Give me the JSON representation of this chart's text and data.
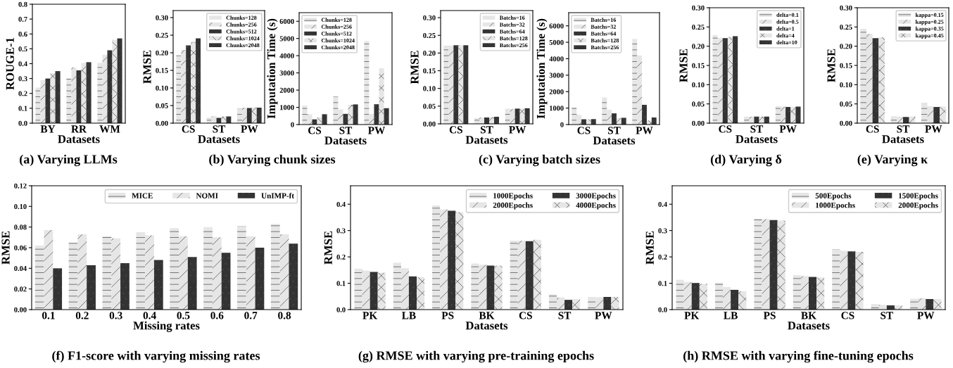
{
  "chart_data": [
    {
      "type": "bar",
      "categories": [
        "BY",
        "RR",
        "WM"
      ],
      "xlabel": "Datasets",
      "ylabel": "ROUGE-1",
      "ylim": [
        0,
        0.8
      ],
      "yticks": [
        {
          "value": 0,
          "label": "0.0"
        },
        {
          "value": 0.1,
          "label": "0.1"
        },
        {
          "value": 0.2,
          "label": "0.2"
        },
        {
          "value": 0.3,
          "label": "0.3"
        },
        {
          "value": 0.4,
          "label": "0.4"
        },
        {
          "value": 0.5,
          "label": "0.5"
        },
        {
          "value": 0.6,
          "label": "0.6"
        },
        {
          "value": 0.7,
          "label": "0.7"
        },
        {
          "value": 0.8,
          "label": "0.8"
        }
      ],
      "annotations": [
        "(a) Varying LLMs"
      ],
      "series": [
        {
          "color": "#e6e6e6",
          "values": [
            0.24,
            0.3,
            0.405
          ]
        },
        {
          "color": "#e6e6e6",
          "values": [
            0.29,
            0.375,
            0.46
          ]
        },
        {
          "color": "#333333",
          "values": [
            0.3,
            0.355,
            0.49
          ]
        },
        {
          "color": "#e6e6e6",
          "values": [
            0.335,
            0.405,
            0.56
          ]
        },
        {
          "color": "#333333",
          "values": [
            0.35,
            0.41,
            0.57
          ]
        }
      ]
    },
    {
      "type": "bar",
      "categories": [
        "CS",
        "ST",
        "PW"
      ],
      "xlabel": "Datasets",
      "ylabel": "RMSE",
      "ylim": [
        0,
        0.32
      ],
      "yticks": [
        {
          "value": 0,
          "label": "0.00"
        },
        {
          "value": 0.05,
          "label": "0.05"
        },
        {
          "value": 0.1,
          "label": "0.10"
        },
        {
          "value": 0.15,
          "label": "0.15"
        },
        {
          "value": 0.2,
          "label": "0.20"
        },
        {
          "value": 0.25,
          "label": "0.25"
        },
        {
          "value": 0.3,
          "label": "0.30"
        }
      ],
      "legend": "top right",
      "annotations": [
        "(b) Varying chunk sizes"
      ],
      "series": [
        {
          "name": "Chunks=128",
          "color": "#e6e6e6",
          "values": [
            0.193,
            0.016,
            0.041
          ]
        },
        {
          "name": "Chunks=256",
          "color": "#e6e6e6",
          "values": [
            0.208,
            0.02,
            0.044
          ]
        },
        {
          "name": "Chunks=512",
          "color": "#333333",
          "values": [
            0.221,
            0.015,
            0.043
          ]
        },
        {
          "name": "Chunks=1024",
          "color": "#e6e6e6",
          "values": [
            0.231,
            0.019,
            0.045
          ]
        },
        {
          "name": "Chunks=2048",
          "color": "#333333",
          "values": [
            0.241,
            0.019,
            0.044
          ]
        }
      ]
    },
    {
      "type": "bar",
      "categories": [
        "CS",
        "ST",
        "PW"
      ],
      "xlabel": "Datasets",
      "ylabel": "Imputation Time (s)",
      "ylim": [
        0,
        6500
      ],
      "yticks": [
        0,
        1000,
        2000,
        3000,
        4000,
        5000,
        6000
      ],
      "legend": "top left",
      "series": [
        {
          "name": "Chunks=128",
          "color": "#e6e6e6",
          "values": [
            1100,
            1620,
            4850
          ]
        },
        {
          "name": "Chunks=256",
          "color": "#e6e6e6",
          "values": [
            600,
            880,
            620
          ]
        },
        {
          "name": "Chunks=512",
          "color": "#333333",
          "values": [
            300,
            620,
            1180
          ]
        },
        {
          "name": "Chunks=1024",
          "color": "#e6e6e6",
          "values": [
            430,
            1150,
            3270
          ]
        },
        {
          "name": "Chunks=2048",
          "color": "#333333",
          "values": [
            600,
            1170,
            950
          ]
        }
      ]
    },
    {
      "type": "bar",
      "categories": [
        "CS",
        "ST",
        "PW"
      ],
      "xlabel": "Datasets",
      "ylabel": "RMSE",
      "ylim": [
        0,
        0.32
      ],
      "yticks": [
        {
          "value": 0,
          "label": "0.00"
        },
        {
          "value": 0.05,
          "label": "0.05"
        },
        {
          "value": 0.1,
          "label": "0.10"
        },
        {
          "value": 0.15,
          "label": "0.15"
        },
        {
          "value": 0.2,
          "label": "0.20"
        },
        {
          "value": 0.25,
          "label": "0.25"
        },
        {
          "value": 0.3,
          "label": "0.30"
        }
      ],
      "legend": "top right",
      "annotations": [
        "(c) Varying batch sizes"
      ],
      "series": [
        {
          "name": "Batchs=16",
          "color": "#e6e6e6",
          "values": [
            0.221,
            0.016,
            0.042
          ]
        },
        {
          "name": "Batchs=32",
          "color": "#e6e6e6",
          "values": [
            0.221,
            0.018,
            0.042
          ]
        },
        {
          "name": "Batchs=64",
          "color": "#333333",
          "values": [
            0.222,
            0.018,
            0.043
          ]
        },
        {
          "name": "Batchs=128",
          "color": "#e6e6e6",
          "values": [
            0.222,
            0.019,
            0.043
          ]
        },
        {
          "name": "Batchs=256",
          "color": "#333333",
          "values": [
            0.222,
            0.02,
            0.044
          ]
        }
      ]
    },
    {
      "type": "bar",
      "categories": [
        "CS",
        "ST",
        "PW"
      ],
      "xlabel": "Datasets",
      "ylabel": "Imputation Time (s)",
      "ylim": [
        0,
        6800
      ],
      "yticks": [
        0,
        1000,
        2000,
        3000,
        4000,
        5000,
        6000
      ],
      "legend": "top left",
      "series": [
        {
          "name": "Batchs=16",
          "color": "#e6e6e6",
          "values": [
            1050,
            1650,
            5200
          ]
        },
        {
          "name": "Batchs=32",
          "color": "#e6e6e6",
          "values": [
            580,
            900,
            4200
          ]
        },
        {
          "name": "Batchs=64",
          "color": "#333333",
          "values": [
            320,
            680,
            1200
          ]
        },
        {
          "name": "Batchs=128",
          "color": "#e6e6e6",
          "values": [
            320,
            400,
            250
          ]
        },
        {
          "name": "Batchs=256",
          "color": "#333333",
          "values": [
            330,
            410,
            430
          ]
        }
      ]
    },
    {
      "type": "bar",
      "categories": [
        "CS",
        "ST",
        "PW"
      ],
      "xlabel": "Datasets",
      "ylabel": "RMSE",
      "ylim": [
        0,
        0.3
      ],
      "yticks": [
        {
          "value": 0,
          "label": "0.00"
        },
        {
          "value": 0.05,
          "label": "0.05"
        },
        {
          "value": 0.1,
          "label": "0.10"
        },
        {
          "value": 0.15,
          "label": "0.15"
        },
        {
          "value": 0.2,
          "label": "0.20"
        },
        {
          "value": 0.25,
          "label": "0.25"
        },
        {
          "value": 0.3,
          "label": "0.30"
        }
      ],
      "legend": "top right",
      "annotations": [
        "(d) Varying δ"
      ],
      "series": [
        {
          "name": "delta=0.1",
          "color": "#e6e6e6",
          "values": [
            0.229,
            0.017,
            0.044
          ]
        },
        {
          "name": "delta=0.5",
          "color": "#e6e6e6",
          "values": [
            0.222,
            0.017,
            0.043
          ]
        },
        {
          "name": "delta=1",
          "color": "#333333",
          "values": [
            0.221,
            0.017,
            0.042
          ]
        },
        {
          "name": "delta=4",
          "color": "#e6e6e6",
          "values": [
            0.224,
            0.017,
            0.042
          ]
        },
        {
          "name": "delta=10",
          "color": "#333333",
          "values": [
            0.226,
            0.017,
            0.043
          ]
        }
      ]
    },
    {
      "type": "bar",
      "categories": [
        "CS",
        "ST",
        "PW"
      ],
      "xlabel": "Datasets",
      "ylabel": "RMSE",
      "ylim": [
        0,
        0.3
      ],
      "yticks": [
        {
          "value": 0,
          "label": "0.00"
        },
        {
          "value": 0.05,
          "label": "0.05"
        },
        {
          "value": 0.1,
          "label": "0.10"
        },
        {
          "value": 0.15,
          "label": "0.15"
        },
        {
          "value": 0.2,
          "label": "0.20"
        },
        {
          "value": 0.25,
          "label": "0.25"
        },
        {
          "value": 0.3,
          "label": "0.30"
        }
      ],
      "legend": "top right",
      "annotations": [
        "(e) Varying κ"
      ],
      "series": [
        {
          "name": "kappa=0.15",
          "color": "#e6e6e6",
          "values": [
            0.245,
            0.018,
            0.052
          ]
        },
        {
          "name": "kappa=0.25",
          "color": "#e6e6e6",
          "values": [
            0.232,
            0.017,
            0.044
          ]
        },
        {
          "name": "kappa=0.35",
          "color": "#333333",
          "values": [
            0.221,
            0.016,
            0.042
          ]
        },
        {
          "name": "kappa=0.45",
          "color": "#e6e6e6",
          "values": [
            0.223,
            0.017,
            0.043
          ]
        }
      ]
    },
    {
      "type": "bar",
      "categories": [
        "0.1",
        "0.2",
        "0.3",
        "0.4",
        "0.5",
        "0.6",
        "0.7",
        "0.8"
      ],
      "xlabel": "Missing rates",
      "ylabel": "RMSE",
      "ylim": [
        0,
        0.12
      ],
      "yticks": [
        {
          "value": 0,
          "label": "0.00"
        },
        {
          "value": 0.02,
          "label": "0.02"
        },
        {
          "value": 0.04,
          "label": "0.04"
        },
        {
          "value": 0.06,
          "label": "0.06"
        },
        {
          "value": 0.08,
          "label": "0.08"
        },
        {
          "value": 0.1,
          "label": "0.10"
        },
        {
          "value": 0.12,
          "label": "0.12"
        }
      ],
      "legend": "top right",
      "annotations": [
        "(f) F1-score with varying missing rates"
      ],
      "series": [
        {
          "name": "MICE",
          "color": "#e6e6e6",
          "values": [
            0.062,
            0.065,
            0.071,
            0.075,
            0.079,
            0.08,
            0.081,
            0.083
          ]
        },
        {
          "name": "NOMI",
          "color": "#e6e6e6",
          "values": [
            0.077,
            0.073,
            0.069,
            0.072,
            0.071,
            0.07,
            0.071,
            0.073
          ]
        },
        {
          "name": "UnIMP-ft",
          "color": "#333333",
          "values": [
            0.04,
            0.043,
            0.045,
            0.048,
            0.051,
            0.055,
            0.06,
            0.064
          ]
        }
      ]
    },
    {
      "type": "bar",
      "categories": [
        "PK",
        "LB",
        "PS",
        "BK",
        "CS",
        "ST",
        "PW"
      ],
      "xlabel": "Datasets",
      "ylabel": "RMSE",
      "ylim": [
        0,
        0.47
      ],
      "yticks": [
        {
          "value": 0,
          "label": "0.0"
        },
        {
          "value": 0.1,
          "label": "0.1"
        },
        {
          "value": 0.2,
          "label": "0.2"
        },
        {
          "value": 0.3,
          "label": "0.3"
        },
        {
          "value": 0.4,
          "label": "0.4"
        }
      ],
      "legend": "top right",
      "annotations": [
        "(g) RMSE with varying pre-training epochs"
      ],
      "series": [
        {
          "name": "1000Epochs",
          "color": "#e6e6e6",
          "values": [
            0.155,
            0.178,
            0.395,
            0.175,
            0.262,
            0.058,
            0.048
          ]
        },
        {
          "name": "2000Epochs",
          "color": "#e6e6e6",
          "values": [
            0.148,
            0.157,
            0.38,
            0.17,
            0.262,
            0.046,
            0.047
          ]
        },
        {
          "name": "3000Epochs",
          "color": "#333333",
          "values": [
            0.143,
            0.126,
            0.375,
            0.167,
            0.26,
            0.037,
            0.048
          ]
        },
        {
          "name": "4000Epochs",
          "color": "#e6e6e6",
          "values": [
            0.14,
            0.123,
            0.37,
            0.167,
            0.265,
            0.04,
            0.048
          ]
        }
      ]
    },
    {
      "type": "bar",
      "categories": [
        "PK",
        "LB",
        "PS",
        "BK",
        "CS",
        "ST",
        "PW"
      ],
      "xlabel": "Datasets",
      "ylabel": "RMSE",
      "ylim": [
        0,
        0.47
      ],
      "yticks": [
        {
          "value": 0,
          "label": "0.0"
        },
        {
          "value": 0.1,
          "label": "0.1"
        },
        {
          "value": 0.2,
          "label": "0.2"
        },
        {
          "value": 0.3,
          "label": "0.3"
        },
        {
          "value": 0.4,
          "label": "0.4"
        }
      ],
      "legend": "top right",
      "annotations": [
        "(h) RMSE with varying fine-tuning epochs"
      ],
      "series": [
        {
          "name": "500Epochs",
          "color": "#e6e6e6",
          "values": [
            0.113,
            0.102,
            0.345,
            0.131,
            0.228,
            0.021,
            0.041
          ]
        },
        {
          "name": "1000Epochs",
          "color": "#e6e6e6",
          "values": [
            0.105,
            0.086,
            0.343,
            0.127,
            0.223,
            0.018,
            0.043
          ]
        },
        {
          "name": "1500Epochs",
          "color": "#333333",
          "values": [
            0.101,
            0.075,
            0.34,
            0.124,
            0.221,
            0.016,
            0.04
          ]
        },
        {
          "name": "2000Epochs",
          "color": "#e6e6e6",
          "values": [
            0.098,
            0.07,
            0.338,
            0.122,
            0.219,
            0.016,
            0.04
          ]
        }
      ]
    }
  ]
}
